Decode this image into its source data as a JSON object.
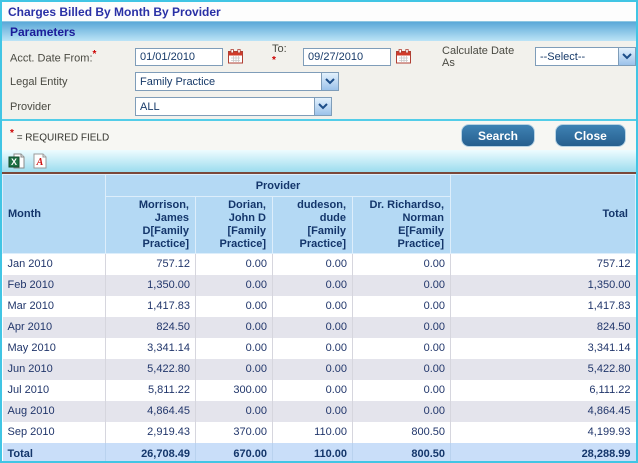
{
  "window": {
    "title": "Charges Billed By Month By Provider"
  },
  "parameters": {
    "header": "Parameters",
    "fields": {
      "acct_date_from": {
        "label": "Acct. Date From:",
        "required": "*",
        "value": "01/01/2010"
      },
      "date_to": {
        "label": "To:",
        "required": "*",
        "value": "09/27/2010"
      },
      "calculate_date_as": {
        "label": "Calculate Date As",
        "value": "--Select--"
      },
      "legal_entity": {
        "label": "Legal Entity",
        "value": "Family Practice"
      },
      "provider": {
        "label": "Provider",
        "value": "ALL"
      }
    },
    "required_note": {
      "asterisk": "*",
      "text": "= REQUIRED FIELD"
    },
    "actions": {
      "search": "Search",
      "close": "Close"
    }
  },
  "toolbar": {
    "icons": [
      "excel-export-icon",
      "pdf-export-icon"
    ]
  },
  "report": {
    "provider_group_header": "Provider",
    "month_header": "Month",
    "total_header": "Total",
    "provider_columns": [
      "Morrison, James D[Family Practice]",
      "Dorian, John D [Family Practice]",
      "dudeson, dude [Family Practice]",
      "Dr. Richardso, Norman E[Family Practice]"
    ],
    "rows": [
      {
        "month": "Jan 2010",
        "values": [
          "757.12",
          "0.00",
          "0.00",
          "0.00",
          "757.12"
        ]
      },
      {
        "month": "Feb 2010",
        "values": [
          "1,350.00",
          "0.00",
          "0.00",
          "0.00",
          "1,350.00"
        ]
      },
      {
        "month": "Mar 2010",
        "values": [
          "1,417.83",
          "0.00",
          "0.00",
          "0.00",
          "1,417.83"
        ]
      },
      {
        "month": "Apr 2010",
        "values": [
          "824.50",
          "0.00",
          "0.00",
          "0.00",
          "824.50"
        ]
      },
      {
        "month": "May 2010",
        "values": [
          "3,341.14",
          "0.00",
          "0.00",
          "0.00",
          "3,341.14"
        ]
      },
      {
        "month": "Jun 2010",
        "values": [
          "5,422.80",
          "0.00",
          "0.00",
          "0.00",
          "5,422.80"
        ]
      },
      {
        "month": "Jul 2010",
        "values": [
          "5,811.22",
          "300.00",
          "0.00",
          "0.00",
          "6,111.22"
        ]
      },
      {
        "month": "Aug 2010",
        "values": [
          "4,864.45",
          "0.00",
          "0.00",
          "0.00",
          "4,864.45"
        ]
      },
      {
        "month": "Sep 2010",
        "values": [
          "2,919.43",
          "370.00",
          "110.00",
          "800.50",
          "4,199.93"
        ]
      }
    ],
    "total_row": {
      "label": "Total",
      "values": [
        "26,708.49",
        "670.00",
        "110.00",
        "800.50",
        "28,288.99"
      ]
    }
  },
  "colors": {
    "window_border": "#41c5e4",
    "title_text": "#2930a6",
    "params_gradient_top": "#5aa8d8",
    "params_gradient_bottom": "#bce4f6",
    "button_blue": "#2d6da3",
    "required_red": "#cc0000",
    "table_header_bg": "#b4d9f4",
    "row_alt_bg": "#e4e4ec",
    "total_row_bg": "#c9def9"
  }
}
